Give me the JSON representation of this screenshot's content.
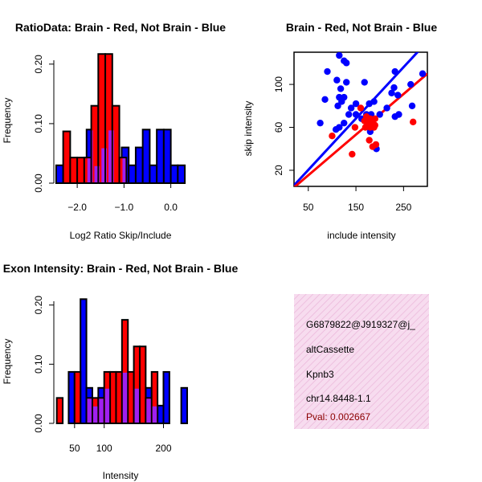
{
  "chart_data": [
    {
      "id": "ratio",
      "type": "bar",
      "title": "RatioData: Brain - Red, Not Brain - Blue",
      "xlabel": "Log2 Ratio Skip/Include",
      "ylabel": "Frequency",
      "xlim": [
        -2.5,
        0.35
      ],
      "ylim": [
        0,
        0.22
      ],
      "xticks": [
        {
          "v": -2.0,
          "label": "−2.0"
        },
        {
          "v": -1.0,
          "label": "−1.0"
        },
        {
          "v": 0.0,
          "label": "0.0"
        }
      ],
      "yticks": [
        {
          "v": 0,
          "label": "0.00"
        },
        {
          "v": 0.1,
          "label": "0.10"
        },
        {
          "v": 0.2,
          "label": "0.20"
        }
      ],
      "series": [
        {
          "name": "Not Brain",
          "color": "#0000ff",
          "bins": [
            {
              "x0": -2.45,
              "x1": -2.3,
              "y": 0.03
            },
            {
              "x0": -1.8,
              "x1": -1.65,
              "y": 0.09
            },
            {
              "x0": -1.65,
              "x1": -1.5,
              "y": 0.03
            },
            {
              "x0": -1.5,
              "x1": -1.35,
              "y": 0.06
            },
            {
              "x0": -1.35,
              "x1": -1.2,
              "y": 0.09
            },
            {
              "x0": -1.05,
              "x1": -0.9,
              "y": 0.06
            },
            {
              "x0": -0.9,
              "x1": -0.75,
              "y": 0.03
            },
            {
              "x0": -0.75,
              "x1": -0.6,
              "y": 0.06
            },
            {
              "x0": -0.6,
              "x1": -0.45,
              "y": 0.09
            },
            {
              "x0": -0.45,
              "x1": -0.3,
              "y": 0.03
            },
            {
              "x0": -0.3,
              "x1": -0.15,
              "y": 0.09
            },
            {
              "x0": -0.15,
              "x1": 0.0,
              "y": 0.09
            },
            {
              "x0": 0.0,
              "x1": 0.15,
              "y": 0.03
            },
            {
              "x0": 0.15,
              "x1": 0.3,
              "y": 0.03
            }
          ]
        },
        {
          "name": "Brain",
          "color": "#ff0000",
          "bins": [
            {
              "x0": -2.3,
              "x1": -2.15,
              "y": 0.087
            },
            {
              "x0": -2.15,
              "x1": -2.0,
              "y": 0.043
            },
            {
              "x0": -2.0,
              "x1": -1.85,
              "y": 0.043
            },
            {
              "x0": -1.85,
              "x1": -1.7,
              "y": 0.043
            },
            {
              "x0": -1.7,
              "x1": -1.55,
              "y": 0.13
            },
            {
              "x0": -1.55,
              "x1": -1.4,
              "y": 0.217
            },
            {
              "x0": -1.4,
              "x1": -1.25,
              "y": 0.217
            },
            {
              "x0": -1.25,
              "x1": -1.1,
              "y": 0.13
            },
            {
              "x0": -1.1,
              "x1": -0.95,
              "y": 0.043
            }
          ]
        }
      ],
      "overlap_color": "#a020f0"
    },
    {
      "id": "scatter",
      "type": "scatter",
      "title": "Brain - Red, Not Brain - Blue",
      "xlabel": "include intensity",
      "ylabel": "skip intensity",
      "xlim": [
        20,
        300
      ],
      "ylim": [
        5,
        130
      ],
      "xticks": [
        {
          "v": 50,
          "label": "50"
        },
        {
          "v": 150,
          "label": "150"
        },
        {
          "v": 250,
          "label": "250"
        }
      ],
      "yticks": [
        {
          "v": 20,
          "label": "20"
        },
        {
          "v": 60,
          "label": "60"
        },
        {
          "v": 100,
          "label": "100"
        }
      ],
      "series": [
        {
          "name": "Not Brain",
          "color": "#0000ff",
          "points": [
            [
              115,
              127
            ],
            [
              125,
              122
            ],
            [
              130,
              120
            ],
            [
              90,
              112
            ],
            [
              110,
              104
            ],
            [
              130,
              102
            ],
            [
              118,
              96
            ],
            [
              168,
              102
            ],
            [
              85,
              86
            ],
            [
              115,
              88
            ],
            [
              125,
              88
            ],
            [
              120,
              84
            ],
            [
              112,
              80
            ],
            [
              150,
              82
            ],
            [
              178,
              82
            ],
            [
              188,
              84
            ],
            [
              135,
              72
            ],
            [
              150,
              72
            ],
            [
              172,
              72
            ],
            [
              182,
              72
            ],
            [
              200,
              72
            ],
            [
              215,
              78
            ],
            [
              225,
              92
            ],
            [
              230,
              97
            ],
            [
              238,
              90
            ],
            [
              232,
              112
            ],
            [
              265,
              100
            ],
            [
              290,
              110
            ],
            [
              240,
              72
            ],
            [
              232,
              70
            ],
            [
              75,
              64
            ],
            [
              125,
              64
            ],
            [
              115,
              60
            ],
            [
              108,
              58
            ],
            [
              268,
              80
            ],
            [
              193,
              40
            ],
            [
              180,
              56
            ],
            [
              162,
              68
            ],
            [
              140,
              78
            ]
          ],
          "line": {
            "x0": 20,
            "y0": 6,
            "x1": 300,
            "y1": 140
          }
        },
        {
          "name": "Brain",
          "color": "#ff0000",
          "points": [
            [
              100,
              52
            ],
            [
              142,
              35
            ],
            [
              148,
              60
            ],
            [
              160,
              78
            ],
            [
              170,
              60
            ],
            [
              175,
              63
            ],
            [
              178,
              65
            ],
            [
              180,
              60
            ],
            [
              183,
              62
            ],
            [
              185,
              64
            ],
            [
              188,
              60
            ],
            [
              190,
              62
            ],
            [
              172,
              70
            ],
            [
              180,
              68
            ],
            [
              190,
              68
            ],
            [
              178,
              48
            ],
            [
              185,
              42
            ],
            [
              192,
              44
            ],
            [
              168,
              66
            ],
            [
              270,
              65
            ]
          ],
          "line": {
            "x0": 20,
            "y0": 4,
            "x1": 300,
            "y1": 110
          }
        }
      ]
    },
    {
      "id": "intensity",
      "type": "bar",
      "title": "Exon Intensity: Brain - Red, Not Brain - Blue",
      "xlabel": "Intensity",
      "ylabel": "Frequency",
      "xlim": [
        15,
        240
      ],
      "ylim": [
        0,
        0.22
      ],
      "xticks": [
        {
          "v": 50,
          "label": "50"
        },
        {
          "v": 100,
          "label": "100"
        },
        {
          "v": 200,
          "label": "200"
        }
      ],
      "yticks": [
        {
          "v": 0,
          "label": "0.00"
        },
        {
          "v": 0.1,
          "label": "0.10"
        },
        {
          "v": 0.2,
          "label": "0.20"
        }
      ],
      "series": [
        {
          "name": "Not Brain",
          "color": "#0000ff",
          "bins": [
            {
              "x0": 40,
              "x1": 50,
              "y": 0.087
            },
            {
              "x0": 60,
              "x1": 70,
              "y": 0.21
            },
            {
              "x0": 70,
              "x1": 80,
              "y": 0.06
            },
            {
              "x0": 80,
              "x1": 90,
              "y": 0.03
            },
            {
              "x0": 90,
              "x1": 100,
              "y": 0.06
            },
            {
              "x0": 100,
              "x1": 110,
              "y": 0.06
            },
            {
              "x0": 130,
              "x1": 140,
              "y": 0.087
            },
            {
              "x0": 150,
              "x1": 160,
              "y": 0.06
            },
            {
              "x0": 170,
              "x1": 180,
              "y": 0.06
            },
            {
              "x0": 180,
              "x1": 190,
              "y": 0.03
            },
            {
              "x0": 190,
              "x1": 200,
              "y": 0.03
            },
            {
              "x0": 200,
              "x1": 210,
              "y": 0.087
            },
            {
              "x0": 230,
              "x1": 240,
              "y": 0.06
            }
          ]
        },
        {
          "name": "Brain",
          "color": "#ff0000",
          "bins": [
            {
              "x0": 20,
              "x1": 30,
              "y": 0.043
            },
            {
              "x0": 50,
              "x1": 60,
              "y": 0.087
            },
            {
              "x0": 70,
              "x1": 80,
              "y": 0.043
            },
            {
              "x0": 80,
              "x1": 90,
              "y": 0.043
            },
            {
              "x0": 90,
              "x1": 100,
              "y": 0.043
            },
            {
              "x0": 100,
              "x1": 110,
              "y": 0.087
            },
            {
              "x0": 110,
              "x1": 120,
              "y": 0.087
            },
            {
              "x0": 120,
              "x1": 130,
              "y": 0.087
            },
            {
              "x0": 130,
              "x1": 140,
              "y": 0.175
            },
            {
              "x0": 140,
              "x1": 150,
              "y": 0.087
            },
            {
              "x0": 150,
              "x1": 160,
              "y": 0.13
            },
            {
              "x0": 160,
              "x1": 170,
              "y": 0.13
            },
            {
              "x0": 170,
              "x1": 180,
              "y": 0.043
            },
            {
              "x0": 180,
              "x1": 190,
              "y": 0.087
            }
          ]
        }
      ],
      "overlap_color": "#a020f0"
    }
  ],
  "info_panel": {
    "background": "#f5d6ec",
    "lines": [
      "G6879822@J919327@j_",
      "altCassette",
      "Kpnb3",
      "chr14.8448-1.1"
    ],
    "pval": "Pval: 0.002667"
  }
}
